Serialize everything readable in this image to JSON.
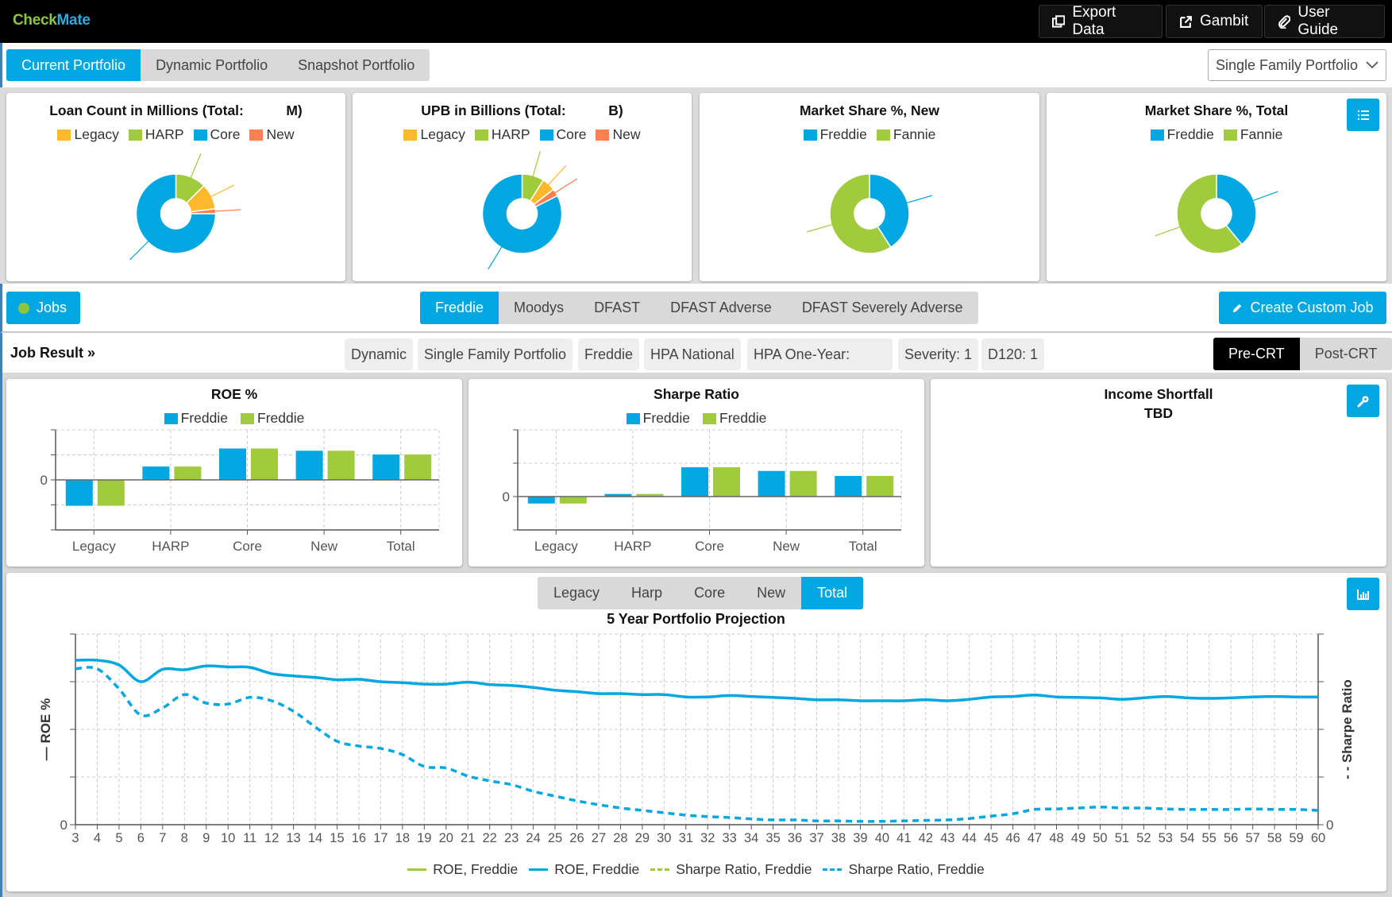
{
  "app": {
    "logo_part1": "Check",
    "logo_part2": "Mate",
    "top_buttons": [
      {
        "label": "Export Data",
        "icon": "copy-icon"
      },
      {
        "label": "Gambit",
        "icon": "external-link-icon"
      },
      {
        "label": "User Guide",
        "icon": "paperclip-icon"
      }
    ]
  },
  "portfolio_tabs": [
    {
      "label": "Current Portfolio",
      "active": true
    },
    {
      "label": "Dynamic Portfolio",
      "active": false
    },
    {
      "label": "Snapshot Portfolio",
      "active": false
    }
  ],
  "portfolio_select": {
    "value": "Single Family Portfolio"
  },
  "colors": {
    "accent": "#00a7e1",
    "green": "#a0cb3c",
    "legacy": "#fdb92b",
    "new": "#ff7f50",
    "core": "#00a7e1",
    "harp": "#a0cb3c"
  },
  "pies": {
    "loan_count": {
      "title": "Loan Count in Millions (Total:           M)"
    },
    "upb": {
      "title": "UPB in Billions (Total:           B)"
    },
    "share_new": {
      "title": "Market Share %, New"
    },
    "share_total": {
      "title": "Market Share %, Total"
    },
    "segment_legend": [
      "Legacy",
      "HARP",
      "Core",
      "New"
    ],
    "gse_legend": [
      "Freddie",
      "Fannie"
    ]
  },
  "jobs": {
    "jobs_label": "Jobs",
    "scenarios": [
      {
        "label": "Freddie",
        "active": true
      },
      {
        "label": "Moodys",
        "active": false
      },
      {
        "label": "DFAST",
        "active": false
      },
      {
        "label": "DFAST Adverse",
        "active": false
      },
      {
        "label": "DFAST Severely Adverse",
        "active": false
      }
    ],
    "create_label": "Create Custom Job"
  },
  "job_result": {
    "label": "Job Result »",
    "chips": [
      "Dynamic",
      "Single Family Portfolio",
      "Freddie",
      "HPA National",
      "HPA One-Year:",
      "Severity: 1",
      "D120: 1"
    ],
    "crt_tabs": [
      {
        "label": "Pre-CRT",
        "active": true
      },
      {
        "label": "Post-CRT",
        "active": false
      }
    ]
  },
  "income_shortfall": {
    "title": "Income Shortfall",
    "value": "TBD"
  },
  "projection": {
    "segment_tabs": [
      {
        "label": "Legacy",
        "active": false
      },
      {
        "label": "Harp",
        "active": false
      },
      {
        "label": "Core",
        "active": false
      },
      {
        "label": "New",
        "active": false
      },
      {
        "label": "Total",
        "active": true
      }
    ],
    "left_axis_label": "— ROE %",
    "right_axis_label": "- - Sharpe Ratio",
    "legend": [
      {
        "label": "ROE, Freddie",
        "style": "solid",
        "color": "#a0cb3c"
      },
      {
        "label": "ROE, Freddie",
        "style": "solid",
        "color": "#00a7e1"
      },
      {
        "label": "Sharpe Ratio, Freddie",
        "style": "dashed",
        "color": "#a0cb3c"
      },
      {
        "label": "Sharpe Ratio, Freddie",
        "style": "dashed",
        "color": "#00a7e1"
      }
    ]
  },
  "chart_data": [
    {
      "type": "pie",
      "title": "Loan Count in Millions (Total:           M)",
      "labels": [
        "HARP",
        "Legacy",
        "New",
        "Core"
      ],
      "values": [
        12.5,
        10.5,
        2,
        75
      ],
      "legend": [
        "Legacy",
        "HARP",
        "Core",
        "New"
      ],
      "donut": true
    },
    {
      "type": "pie",
      "title": "UPB in Billions (Total:           B)",
      "labels": [
        "HARP",
        "Legacy",
        "New",
        "Core"
      ],
      "values": [
        9,
        5.5,
        3,
        82.5
      ],
      "legend": [
        "Legacy",
        "HARP",
        "Core",
        "New"
      ],
      "donut": true
    },
    {
      "type": "pie",
      "title": "Market Share %, New",
      "labels": [
        "Freddie",
        "Fannie"
      ],
      "values": [
        41,
        59
      ],
      "legend": [
        "Freddie",
        "Fannie"
      ],
      "donut": true
    },
    {
      "type": "pie",
      "title": "Market Share %, Total",
      "labels": [
        "Freddie",
        "Fannie"
      ],
      "values": [
        39,
        61
      ],
      "legend": [
        "Freddie",
        "Fannie"
      ],
      "donut": true
    },
    {
      "type": "bar",
      "title": "ROE %",
      "categories": [
        "Legacy",
        "HARP",
        "Core",
        "New",
        "Total"
      ],
      "series": [
        {
          "name": "Freddie",
          "color": "#00a7e1",
          "values": [
            -1.05,
            0.55,
            1.27,
            1.18,
            1.03
          ]
        },
        {
          "name": "Freddie",
          "color": "#a0cb3c",
          "values": [
            -1.05,
            0.55,
            1.27,
            1.18,
            1.03
          ]
        }
      ],
      "ytick_labels": [
        "0"
      ],
      "ylim": [
        -2,
        2
      ],
      "grid": true
    },
    {
      "type": "bar",
      "title": "Sharpe Ratio",
      "categories": [
        "Legacy",
        "HARP",
        "Core",
        "New",
        "Total"
      ],
      "series": [
        {
          "name": "Freddie",
          "color": "#00a7e1",
          "values": [
            -0.22,
            0.09,
            0.89,
            0.78,
            0.63
          ]
        },
        {
          "name": "Freddie",
          "color": "#a0cb3c",
          "values": [
            -0.22,
            0.09,
            0.89,
            0.78,
            0.63
          ]
        }
      ],
      "ytick_labels": [
        "0"
      ],
      "ylim": [
        -1,
        2
      ],
      "grid": true
    },
    {
      "type": "line",
      "title": "5 Year Portfolio Projection",
      "xlabel": "",
      "ylabel": "— ROE %",
      "y2label": "- - Sharpe Ratio",
      "x": [
        3,
        4,
        5,
        6,
        7,
        8,
        9,
        10,
        11,
        12,
        13,
        14,
        15,
        16,
        17,
        18,
        19,
        20,
        21,
        22,
        23,
        24,
        25,
        26,
        27,
        28,
        29,
        30,
        31,
        32,
        33,
        34,
        35,
        36,
        37,
        38,
        39,
        40,
        41,
        42,
        43,
        44,
        45,
        46,
        47,
        48,
        49,
        50,
        51,
        52,
        53,
        54,
        55,
        56,
        57,
        58,
        59,
        60
      ],
      "ylim": [
        0,
        4
      ],
      "y2lim": [
        0,
        4
      ],
      "ytick_labels": [
        "0"
      ],
      "y2tick_labels": [
        "0"
      ],
      "grid": true,
      "legend_position": "bottom",
      "series": [
        {
          "name": "ROE, Freddie",
          "axis": "left",
          "style": "solid",
          "color": "#00a7e1",
          "values": [
            3.45,
            3.45,
            3.35,
            3.0,
            3.26,
            3.25,
            3.33,
            3.31,
            3.3,
            3.17,
            3.12,
            3.09,
            3.04,
            3.05,
            3.0,
            2.98,
            2.95,
            2.95,
            2.99,
            2.94,
            2.92,
            2.88,
            2.82,
            2.79,
            2.75,
            2.75,
            2.73,
            2.73,
            2.68,
            2.68,
            2.71,
            2.69,
            2.67,
            2.65,
            2.62,
            2.62,
            2.6,
            2.6,
            2.6,
            2.62,
            2.6,
            2.63,
            2.68,
            2.69,
            2.72,
            2.68,
            2.67,
            2.66,
            2.63,
            2.66,
            2.69,
            2.66,
            2.65,
            2.66,
            2.68,
            2.69,
            2.68,
            2.68
          ]
        },
        {
          "name": "Sharpe Ratio, Freddie",
          "axis": "right",
          "style": "dashed",
          "color": "#00a7e1",
          "values": [
            3.27,
            3.27,
            2.85,
            2.3,
            2.45,
            2.73,
            2.55,
            2.53,
            2.67,
            2.6,
            2.38,
            2.05,
            1.75,
            1.65,
            1.6,
            1.47,
            1.22,
            1.19,
            1.02,
            0.92,
            0.84,
            0.7,
            0.6,
            0.5,
            0.42,
            0.35,
            0.3,
            0.25,
            0.2,
            0.17,
            0.15,
            0.12,
            0.1,
            0.1,
            0.08,
            0.08,
            0.07,
            0.07,
            0.08,
            0.09,
            0.1,
            0.13,
            0.18,
            0.23,
            0.32,
            0.33,
            0.35,
            0.37,
            0.35,
            0.35,
            0.33,
            0.32,
            0.32,
            0.32,
            0.33,
            0.32,
            0.32,
            0.3
          ]
        }
      ]
    }
  ]
}
